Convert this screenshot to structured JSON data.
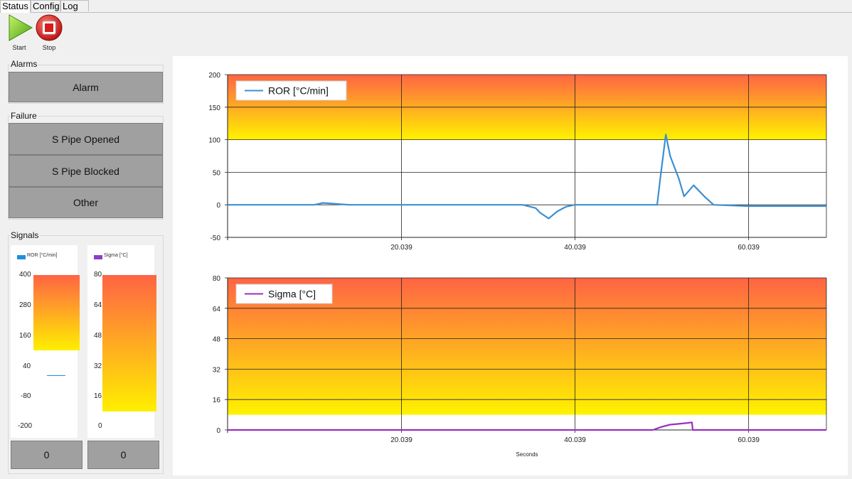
{
  "tabs": [
    "Status",
    "Config",
    "Log"
  ],
  "toolbar": {
    "start_label": "Start",
    "stop_label": "Stop"
  },
  "alarms": {
    "title": "Alarms",
    "alarm_label": "Alarm"
  },
  "failure": {
    "title": "Failure",
    "items": [
      "S Pipe Opened",
      "S Pipe Blocked",
      "Other"
    ]
  },
  "signals": {
    "title": "Signals",
    "ror": {
      "legend": "ROR [°C/min]",
      "ticks": [
        "400",
        "280",
        "160",
        "40",
        "-80",
        "-200"
      ],
      "value": "0",
      "color": "#1e90dc"
    },
    "sigma": {
      "legend": "Sigma [°C]",
      "ticks": [
        "80",
        "64",
        "48",
        "32",
        "16",
        "0"
      ],
      "value": "0",
      "color": "#8a3fc4"
    }
  },
  "chart_data": [
    {
      "type": "line",
      "title": "",
      "series": [
        {
          "name": "ROR [°C/min]",
          "color": "#3d8fd1",
          "x": [
            0,
            10,
            11,
            12,
            14,
            20,
            25,
            30,
            34,
            35.5,
            36,
            37,
            38,
            39,
            40,
            45,
            49.5,
            49.9,
            50.5,
            51,
            52,
            52.6,
            53.7,
            55,
            56,
            60,
            65,
            69
          ],
          "y": [
            0,
            0,
            3,
            2,
            0,
            0,
            0,
            0,
            0,
            -5,
            -12,
            -21,
            -10,
            -3,
            0,
            0,
            0,
            45,
            108,
            75,
            40,
            13,
            30,
            12,
            0,
            -2,
            -2,
            -2
          ]
        }
      ],
      "x_ticks": [
        "20.039",
        "40.039",
        "60.039"
      ],
      "x_tick_values": [
        20.039,
        40.039,
        60.039
      ],
      "xlim": [
        0,
        69
      ],
      "y_ticks": [
        "-50",
        "0",
        "50",
        "100",
        "150",
        "200"
      ],
      "ylim": [
        -50,
        200
      ],
      "alarm_zone": [
        100,
        200
      ],
      "grid": true,
      "legend": "top-left"
    },
    {
      "type": "line",
      "title": "",
      "xlabel": "Seconds",
      "series": [
        {
          "name": "Sigma [°C]",
          "color": "#9a2fc0",
          "x": [
            0,
            49,
            50,
            51,
            52,
            53,
            53.5,
            53.6,
            69
          ],
          "y": [
            0,
            0,
            1.6,
            2.8,
            3.2,
            3.7,
            4,
            0,
            0
          ]
        }
      ],
      "x_ticks": [
        "20.039",
        "40.039",
        "60.039"
      ],
      "x_tick_values": [
        20.039,
        40.039,
        60.039
      ],
      "xlim": [
        0,
        69
      ],
      "y_ticks": [
        "0",
        "16",
        "32",
        "48",
        "64",
        "80"
      ],
      "ylim": [
        0,
        80
      ],
      "alarm_zone": [
        8,
        80
      ],
      "grid": true,
      "legend": "top-left"
    }
  ]
}
